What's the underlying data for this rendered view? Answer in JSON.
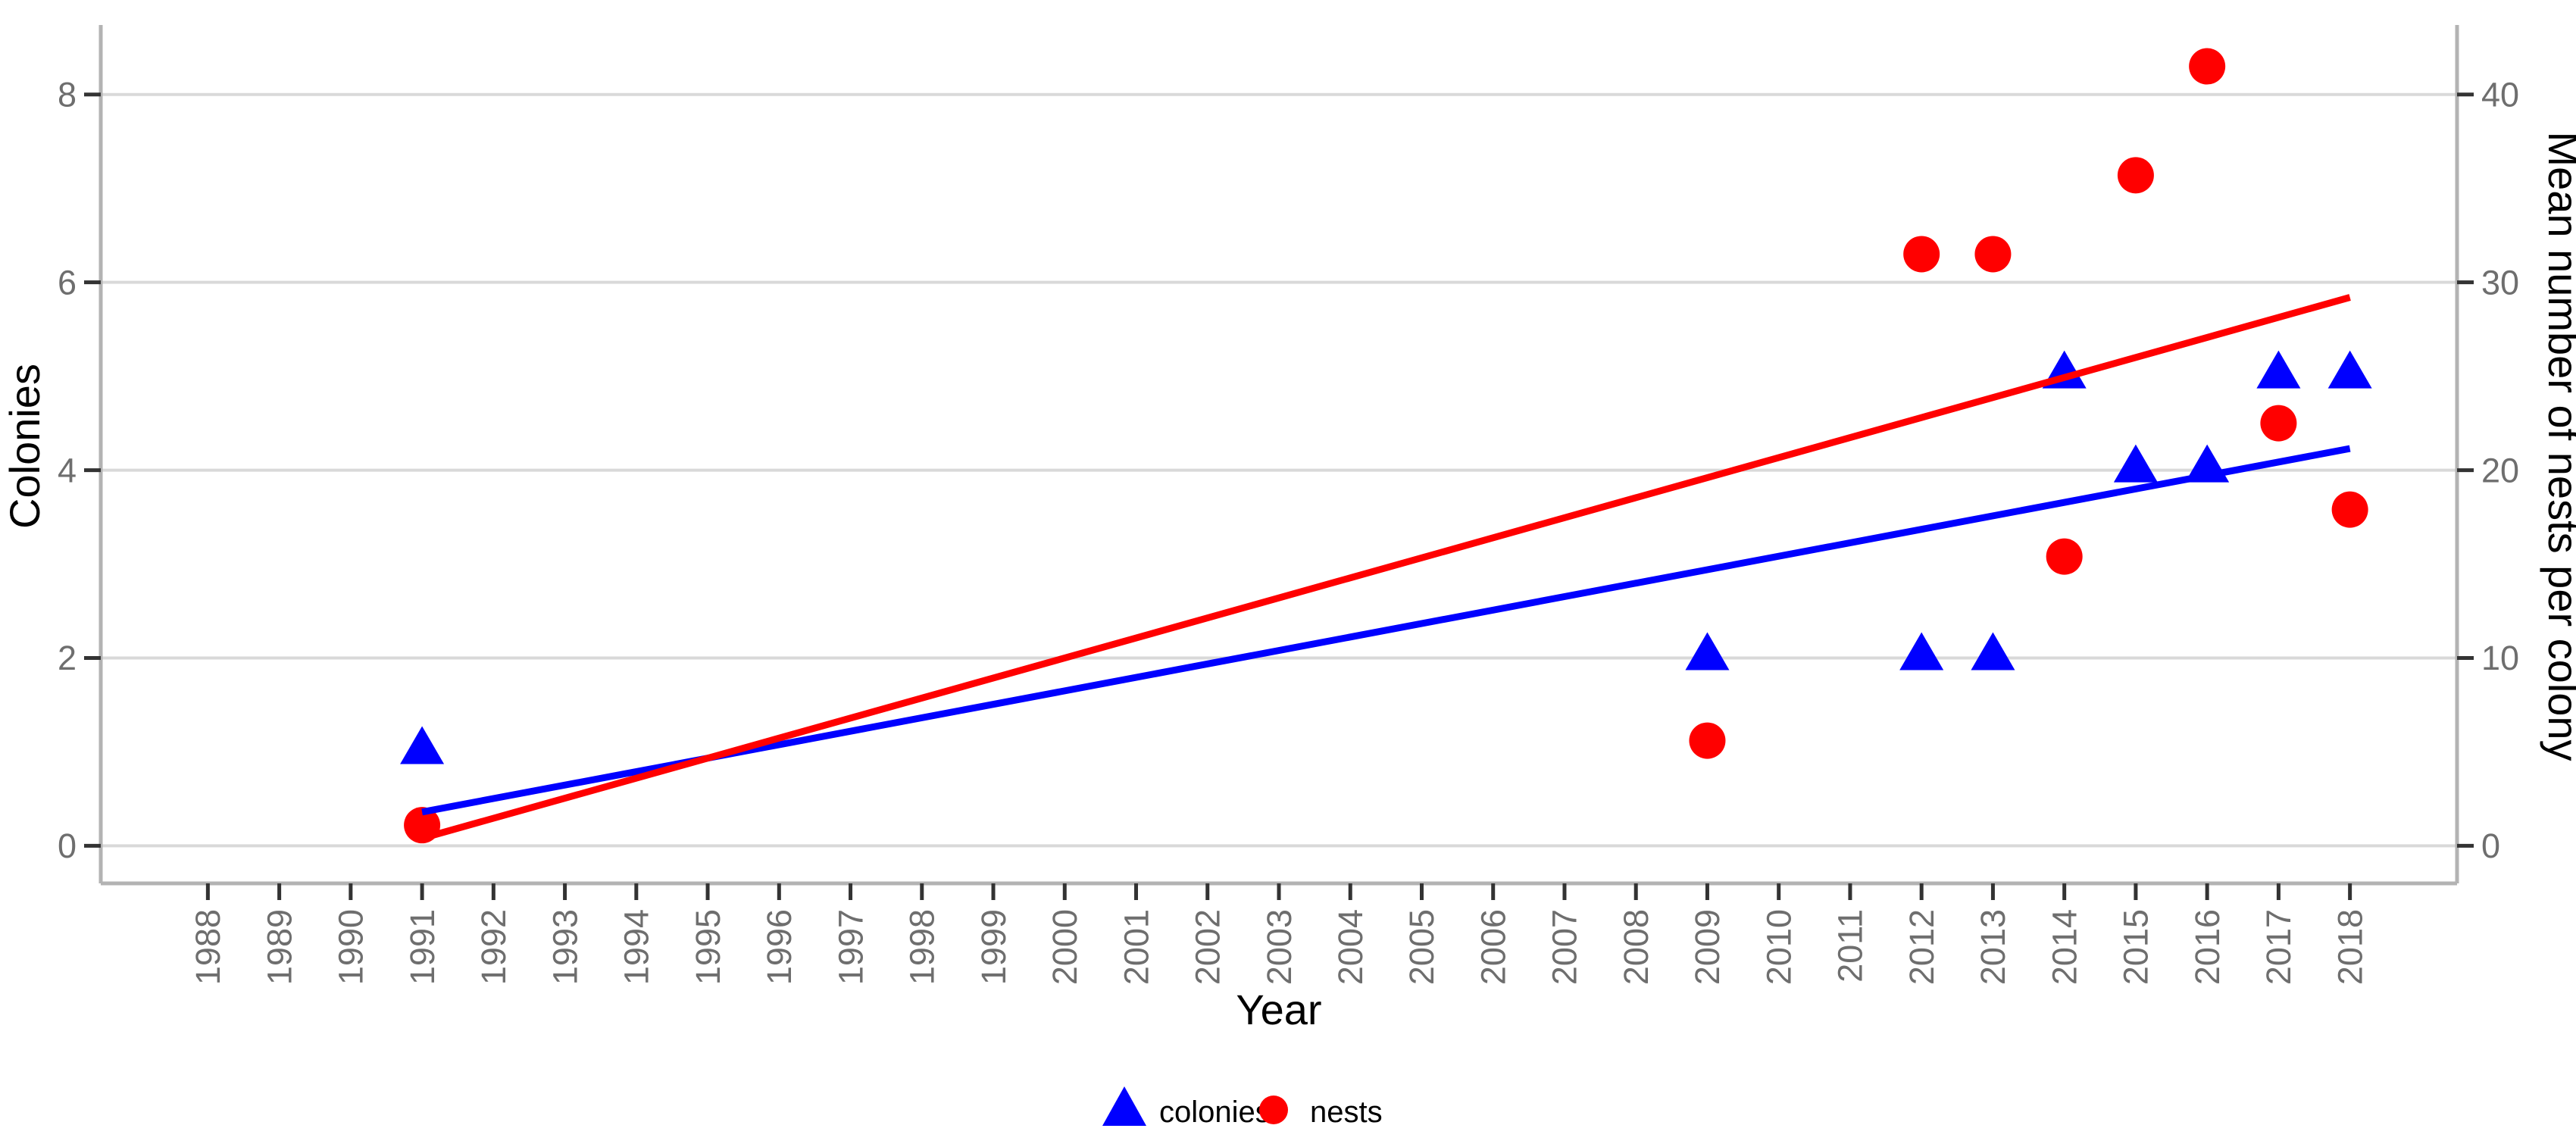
{
  "chart_data": {
    "type": "scatter",
    "title": "",
    "xlabel": "Year",
    "ylabel_left": "Colonies",
    "ylabel_right": "Mean number of nests per colony",
    "xlim": [
      1986.5,
      2019.5
    ],
    "ylim_left": [
      -0.4,
      8.74
    ],
    "ylim_right": [
      -2.0,
      43.7
    ],
    "x_ticks": [
      1988,
      1989,
      1990,
      1991,
      1992,
      1993,
      1994,
      1995,
      1996,
      1997,
      1998,
      1999,
      2000,
      2001,
      2002,
      2003,
      2004,
      2005,
      2006,
      2007,
      2008,
      2009,
      2010,
      2011,
      2012,
      2013,
      2014,
      2015,
      2016,
      2017,
      2018
    ],
    "y_left_ticks": [
      0,
      2,
      4,
      6,
      8
    ],
    "y_right_ticks": [
      0,
      10,
      20,
      30,
      40
    ],
    "grid": "horizontal-only",
    "legend_position": "bottom-center",
    "series": [
      {
        "name": "colonies",
        "marker": "triangle",
        "color": "#0000ff",
        "axis": "left",
        "x": [
          1991,
          2009,
          2012,
          2013,
          2014,
          2015,
          2016,
          2017,
          2018
        ],
        "values": [
          1,
          2,
          2,
          2,
          5,
          4,
          4,
          5,
          5
        ]
      },
      {
        "name": "nests",
        "marker": "circle",
        "color": "#ff0000",
        "axis": "right",
        "x": [
          1991,
          2009,
          2012,
          2013,
          2014,
          2015,
          2016,
          2017,
          2018
        ],
        "values": [
          1.1,
          5.6,
          31.5,
          31.5,
          15.4,
          35.7,
          41.5,
          22.5,
          17.9
        ]
      }
    ],
    "trend_lines": [
      {
        "series": "colonies",
        "color": "#0000ff",
        "axis": "left",
        "x": [
          1991,
          2018
        ],
        "y": [
          0.36,
          4.23
        ]
      },
      {
        "series": "nests",
        "color": "#ff0000",
        "axis": "right",
        "x": [
          1991,
          2018
        ],
        "y": [
          0.4,
          29.2
        ]
      }
    ],
    "colors": {
      "colonies": "#0000ff",
      "nests": "#ff0000",
      "gridline": "#d9d9d9",
      "axis_line": "#b3b3b3",
      "tick_mark": "#333333",
      "tick_label": "#6e6e6e",
      "axis_title": "#000000"
    }
  },
  "legend": {
    "items": [
      {
        "label": "colonies"
      },
      {
        "label": "nests"
      }
    ]
  }
}
